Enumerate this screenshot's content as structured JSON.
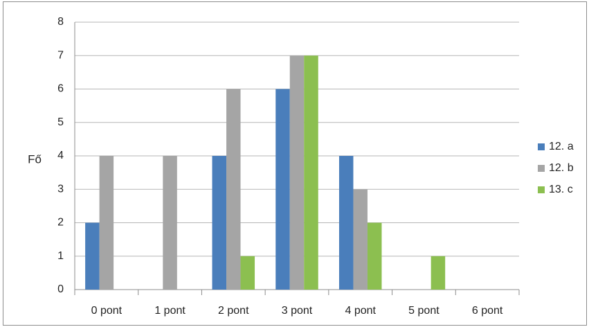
{
  "chart_data": {
    "type": "bar",
    "title": "",
    "xlabel": "",
    "ylabel": "Fő",
    "categories": [
      "0 pont",
      "1 pont",
      "2 pont",
      "3 pont",
      "4 pont",
      "5 pont",
      "6 pont"
    ],
    "ylim": [
      0,
      8
    ],
    "yticks": [
      "0",
      "1",
      "2",
      "3",
      "4",
      "5",
      "6",
      "7",
      "8"
    ],
    "grid": true,
    "legend_position": "right",
    "series": [
      {
        "name": "12. a",
        "color": "#4a7ebb",
        "values": [
          2,
          0,
          4,
          6,
          4,
          0,
          0
        ]
      },
      {
        "name": "12. b",
        "color": "#a5a5a5",
        "values": [
          4,
          4,
          6,
          7,
          3,
          0,
          0
        ]
      },
      {
        "name": "13. c",
        "color": "#8cbf50",
        "values": [
          0,
          0,
          1,
          7,
          2,
          1,
          0
        ]
      }
    ]
  }
}
